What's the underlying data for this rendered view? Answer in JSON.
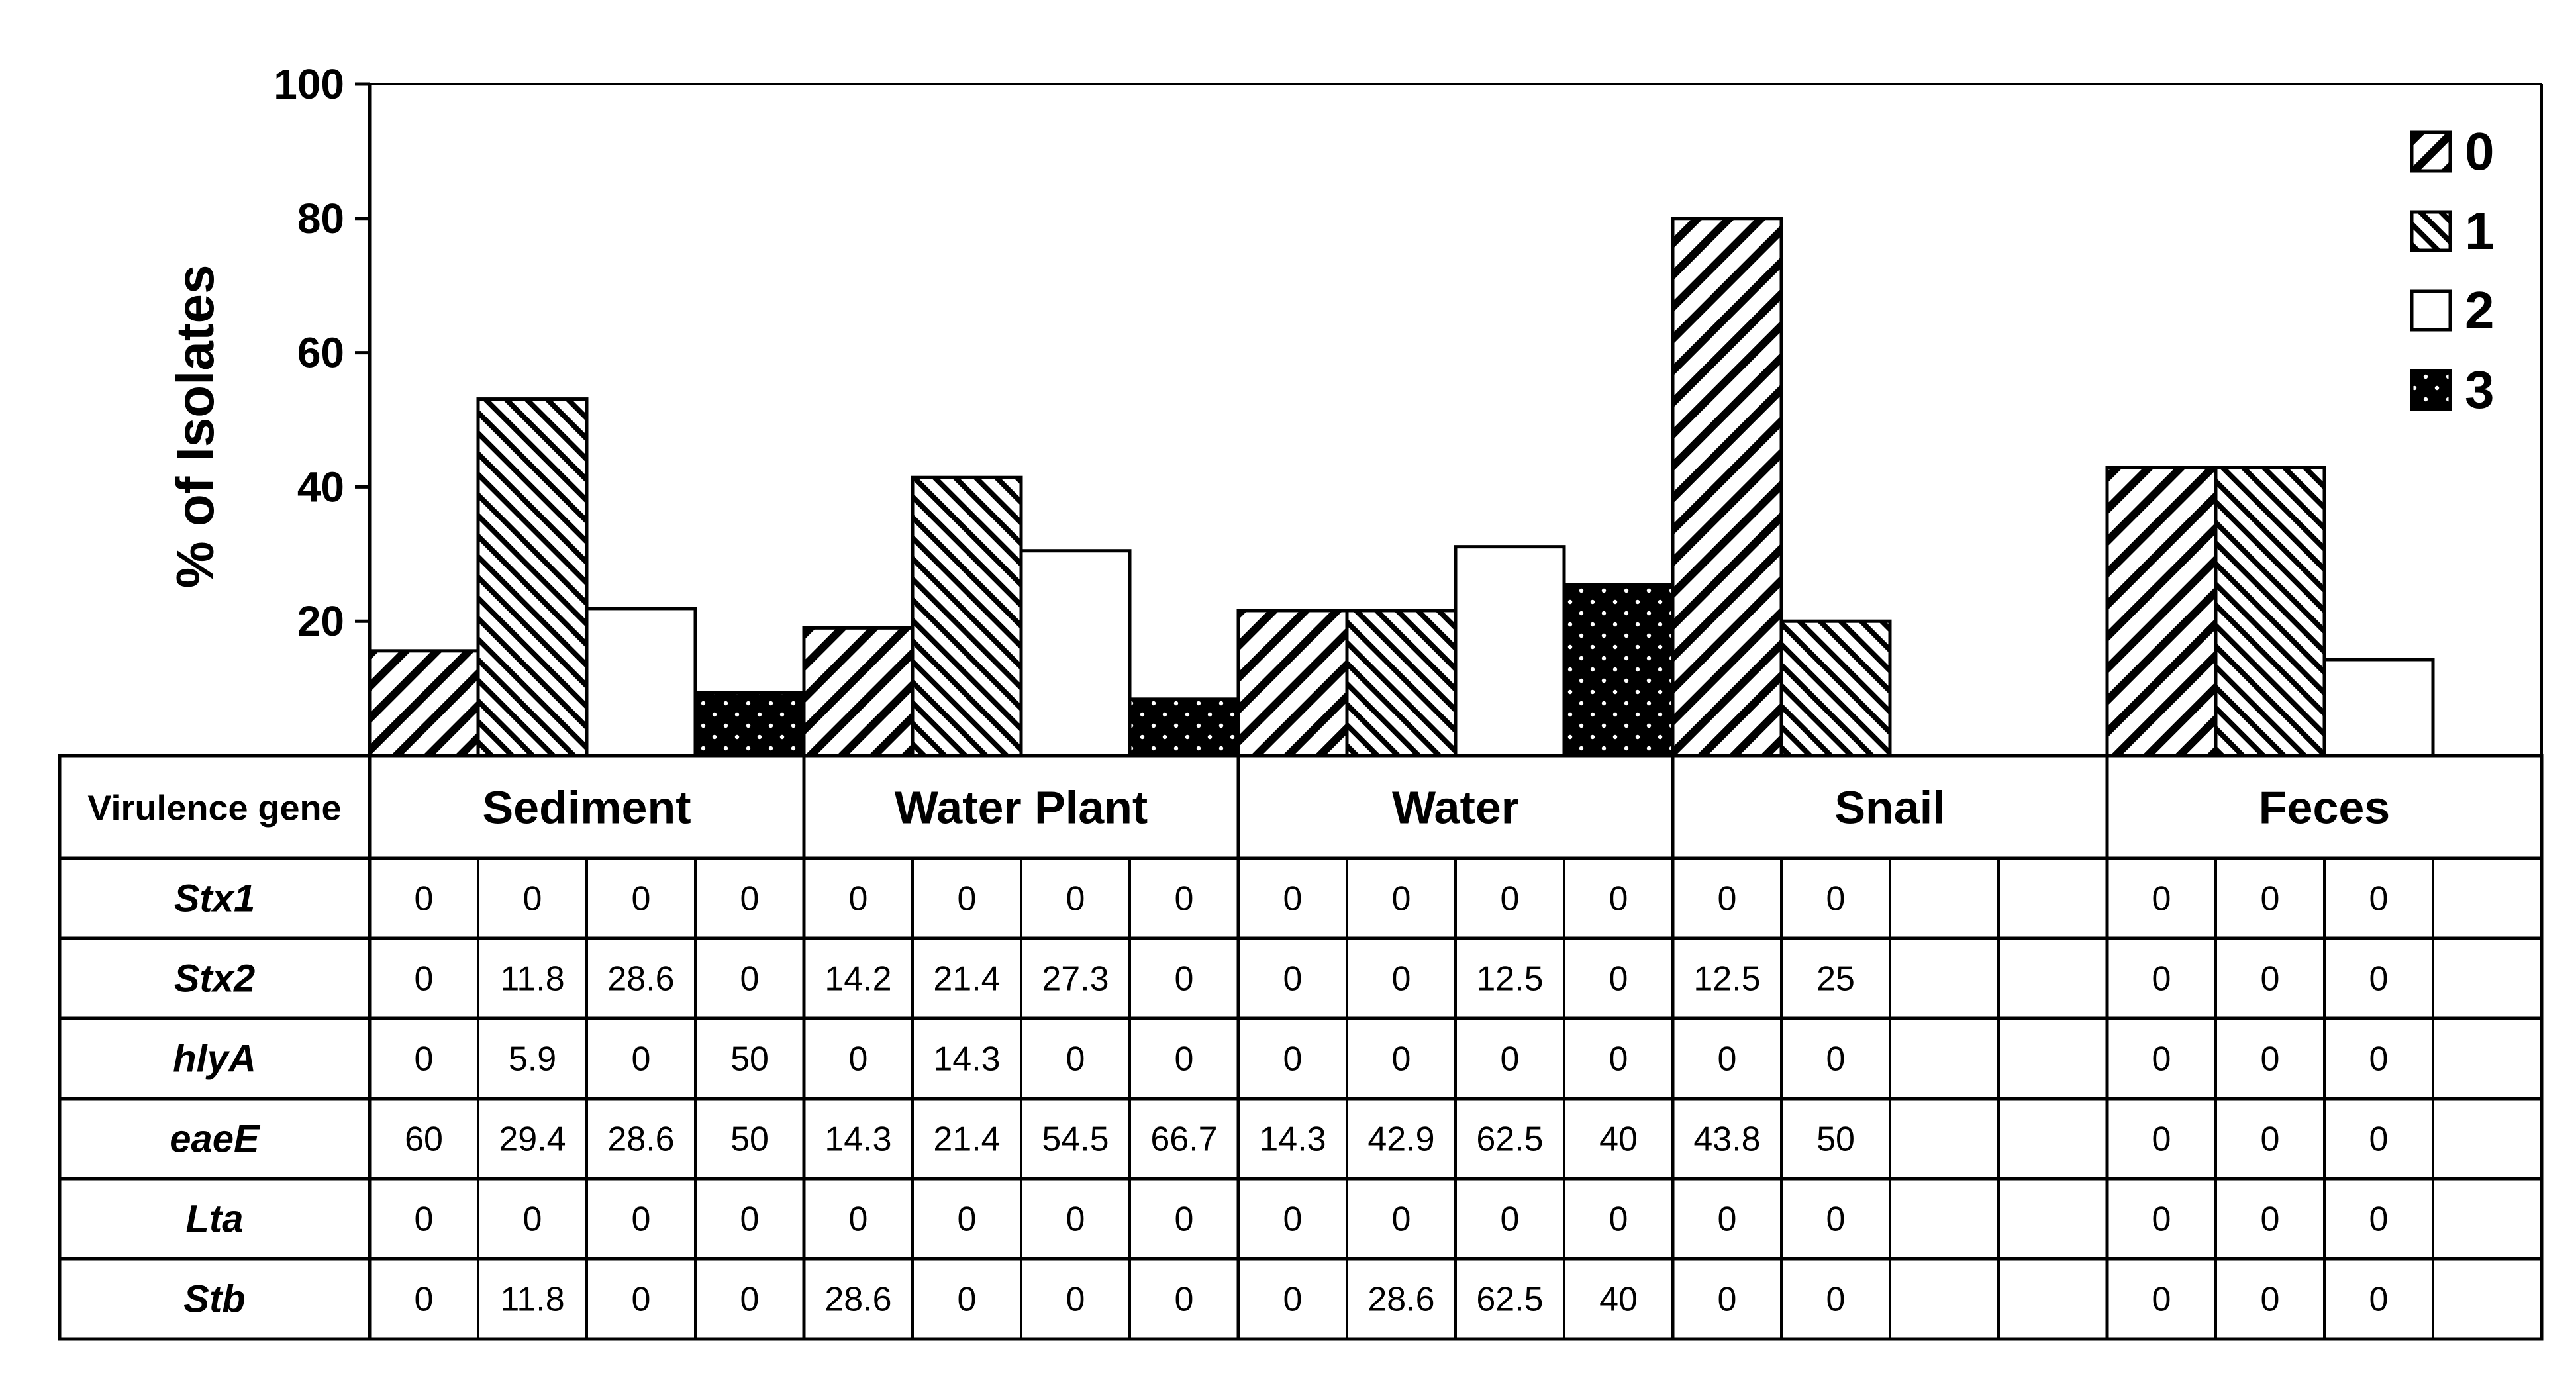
{
  "chart_data": {
    "type": "bar",
    "ylabel": "% of Isolates",
    "ylim": [
      0,
      100
    ],
    "yticks": [
      20,
      40,
      60,
      80,
      100
    ],
    "categories": [
      "Sediment",
      "Water Plant",
      "Water",
      "Snail",
      "Feces"
    ],
    "legend_position": "top-right",
    "series": [
      {
        "name": "0",
        "pattern": "diagonal-ne",
        "values": [
          15.6,
          19.0,
          21.6,
          80.0,
          42.9
        ]
      },
      {
        "name": "1",
        "pattern": "diagonal-nw",
        "values": [
          53.1,
          41.4,
          21.6,
          20.0,
          42.9
        ]
      },
      {
        "name": "2",
        "pattern": "white",
        "values": [
          21.9,
          30.5,
          31.1,
          null,
          14.3
        ]
      },
      {
        "name": "3",
        "pattern": "black-dotted",
        "values": [
          9.4,
          8.4,
          25.4,
          null,
          null
        ]
      }
    ]
  },
  "table": {
    "header_label": "Virulence gene",
    "groups": [
      "Sediment",
      "Water Plant",
      "Water",
      "Snail",
      "Feces"
    ],
    "rows": [
      {
        "gene": "Stx1",
        "values": [
          "0",
          "0",
          "0",
          "0",
          "0",
          "0",
          "0",
          "0",
          "0",
          "0",
          "0",
          "0",
          "0",
          "0",
          "",
          "",
          "0",
          "0",
          "0",
          ""
        ]
      },
      {
        "gene": "Stx2",
        "values": [
          "0",
          "11.8",
          "28.6",
          "0",
          "14.2",
          "21.4",
          "27.3",
          "0",
          "0",
          "0",
          "12.5",
          "0",
          "12.5",
          "25",
          "",
          "",
          "0",
          "0",
          "0",
          ""
        ]
      },
      {
        "gene": "hlyA",
        "values": [
          "0",
          "5.9",
          "0",
          "50",
          "0",
          "14.3",
          "0",
          "0",
          "0",
          "0",
          "0",
          "0",
          "0",
          "0",
          "",
          "",
          "0",
          "0",
          "0",
          ""
        ]
      },
      {
        "gene": "eaeE",
        "values": [
          "60",
          "29.4",
          "28.6",
          "50",
          "14.3",
          "21.4",
          "54.5",
          "66.7",
          "14.3",
          "42.9",
          "62.5",
          "40",
          "43.8",
          "50",
          "",
          "",
          "0",
          "0",
          "0",
          ""
        ]
      },
      {
        "gene": "Lta",
        "values": [
          "0",
          "0",
          "0",
          "0",
          "0",
          "0",
          "0",
          "0",
          "0",
          "0",
          "0",
          "0",
          "0",
          "0",
          "",
          "",
          "0",
          "0",
          "0",
          ""
        ]
      },
      {
        "gene": "Stb",
        "values": [
          "0",
          "11.8",
          "0",
          "0",
          "28.6",
          "0",
          "0",
          "0",
          "0",
          "28.6",
          "62.5",
          "40",
          "0",
          "0",
          "",
          "",
          "0",
          "0",
          "0",
          ""
        ]
      }
    ]
  }
}
